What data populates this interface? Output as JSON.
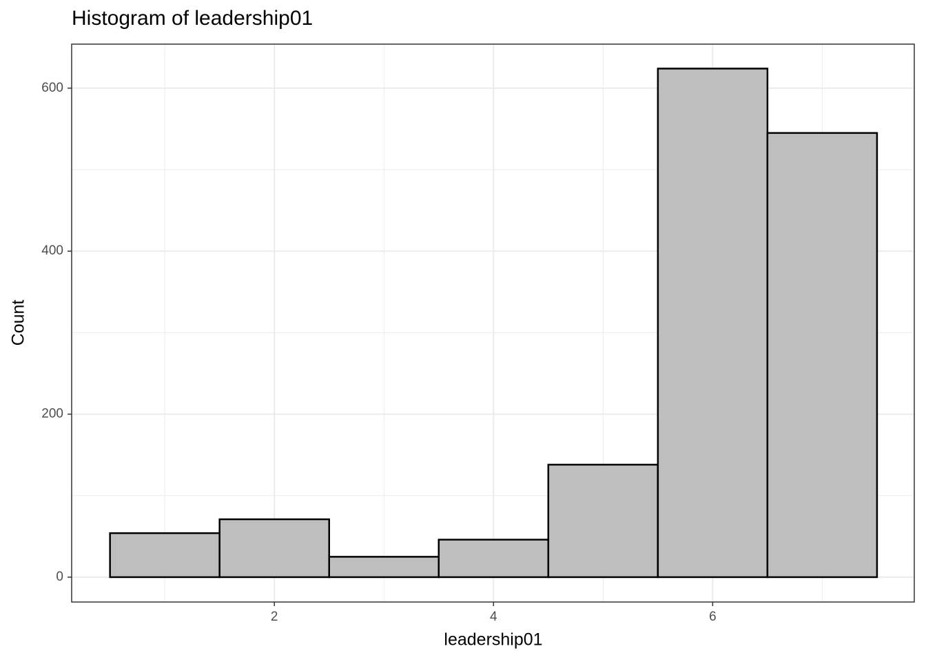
{
  "chart_data": {
    "type": "histogram",
    "title": "Histogram of leadership01",
    "x_label": "leadership01",
    "y_label": "Count",
    "bins": [
      0.5,
      1.5,
      2.5,
      3.5,
      4.5,
      5.5,
      6.5,
      7.5
    ],
    "values": [
      54,
      71,
      25,
      46,
      138,
      624,
      545
    ],
    "color": "#bebebe",
    "edge_color": "#000000",
    "xlim": [
      0.15,
      7.84
    ],
    "ylim": [
      -30.5,
      654
    ],
    "xticks": [
      2,
      4,
      6
    ],
    "yticks": [
      0,
      200,
      400,
      600
    ],
    "x_minor_ticks": [
      1,
      3,
      5,
      7
    ],
    "y_minor_ticks": [
      100,
      300,
      500
    ],
    "grid": true
  }
}
